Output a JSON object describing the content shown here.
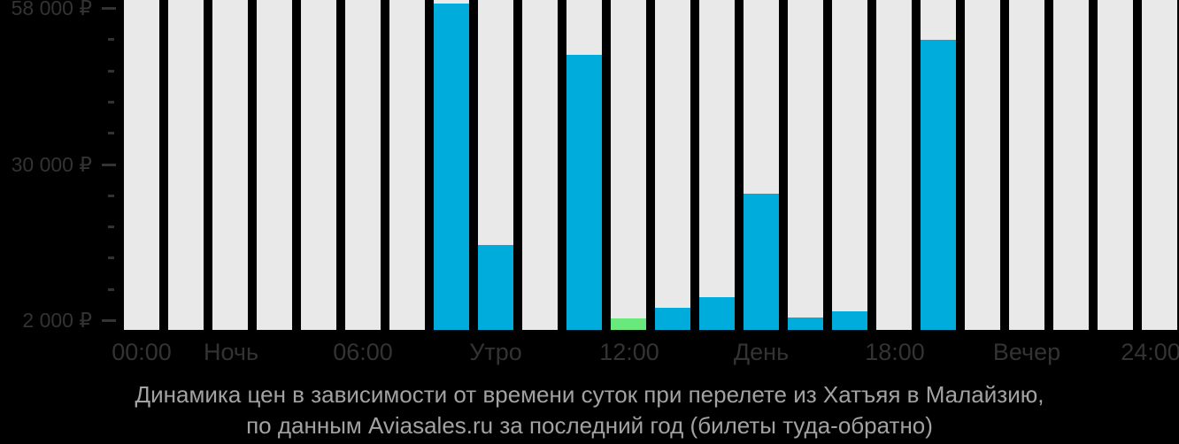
{
  "caption": {
    "line1": "Динамика цен в зависимости от времени суток при перелете из Хатъяя в Малайзию,",
    "line2": "по данным Aviasales.ru за последний год (билеты туда-обратно)"
  },
  "colors": {
    "background": "#000000",
    "column_background": "#E9E9E9",
    "price_bar": "#00ACDB",
    "min_price_bar": "#69E87B",
    "axis_text": "#333333",
    "caption_text": "#A2A2A2"
  },
  "y_axis": {
    "tick_labels": [
      "58 000 ₽",
      "30 000 ₽",
      "2 000 ₽"
    ],
    "tick_values": [
      58000,
      30000,
      2000
    ],
    "minor_ticks_between_major": 4
  },
  "x_axis": {
    "tick_labels": [
      "00:00",
      "Ночь",
      "06:00",
      "Утро",
      "12:00",
      "День",
      "18:00",
      "Вечер",
      "24:00"
    ]
  },
  "chart_data": {
    "type": "bar",
    "title": "Динамика цен в зависимости от времени суток при перелете из Хатъяя в Малайзию, по данным Aviasales.ru за последний год (билеты туда-обратно)",
    "categories": [
      "00:00",
      "01:00",
      "02:00",
      "03:00",
      "04:00",
      "05:00",
      "06:00",
      "07:00",
      "08:00",
      "09:00",
      "10:00",
      "11:00",
      "12:00",
      "13:00",
      "14:00",
      "15:00",
      "16:00",
      "17:00",
      "18:00",
      "19:00",
      "20:00",
      "21:00",
      "22:00",
      "23:00"
    ],
    "values": [
      null,
      null,
      null,
      null,
      null,
      null,
      null,
      58000,
      15000,
      null,
      48900,
      2000,
      3900,
      5800,
      24200,
      2200,
      3300,
      null,
      51500,
      null,
      null,
      null,
      null,
      null
    ],
    "unit": "RUB",
    "ylim": [
      0,
      59400
    ],
    "y_ticks_labeled": [
      58000,
      30000,
      2000
    ],
    "min_price": {
      "hour_index": 11,
      "value": 2000
    },
    "grid": false,
    "legend": false
  }
}
